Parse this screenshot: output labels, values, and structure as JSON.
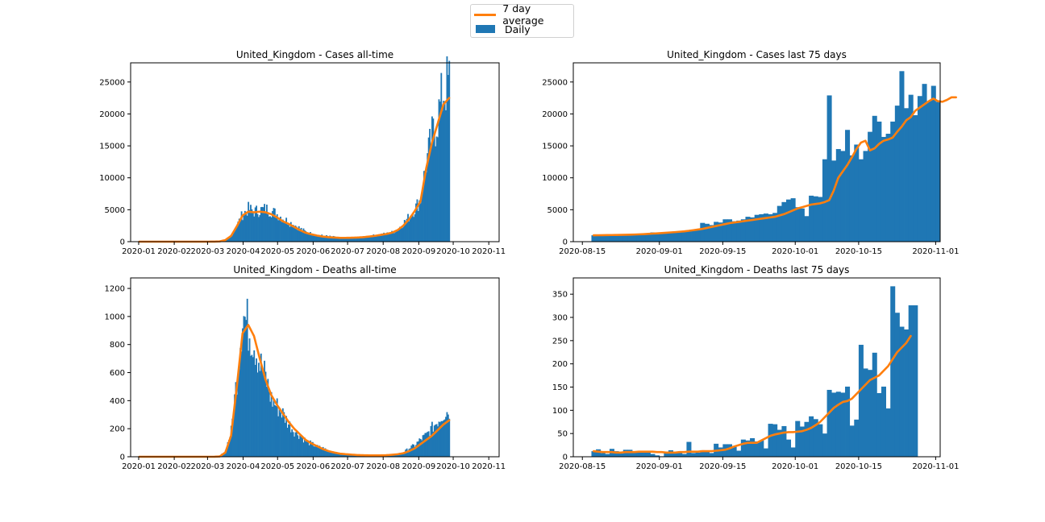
{
  "legend": {
    "items": [
      {
        "label": "7 day average",
        "color": "#ff7f0e",
        "kind": "line"
      },
      {
        "label": "Daily",
        "color": "#1f77b4",
        "kind": "bar"
      }
    ],
    "placement": "top-center"
  },
  "colors": {
    "bar": "#1f77b4",
    "line": "#ff7f0e"
  },
  "chart_data": [
    {
      "type": "bar",
      "title": "United_Kingdom - Cases all-time",
      "xlabel": "",
      "ylabel": "",
      "x_range": [
        "2019-12-25",
        "2020-11-10"
      ],
      "ylim": [
        0,
        28000
      ],
      "x_ticks": [
        "2020-01",
        "2020-02",
        "2020-03",
        "2020-04",
        "2020-05",
        "2020-06",
        "2020-07",
        "2020-08",
        "2020-09",
        "2020-10",
        "2020-11"
      ],
      "y_ticks": [
        0,
        5000,
        10000,
        15000,
        20000,
        25000
      ],
      "bar_start": "2020-01-01",
      "bar_days": 1,
      "daily": {
        "step": 5,
        "values": [
          0,
          0,
          0,
          0,
          0,
          0,
          0,
          0,
          0,
          0,
          0,
          0,
          0,
          10,
          60,
          300,
          900,
          2500,
          4200,
          5000,
          4600,
          4800,
          5000,
          4700,
          4200,
          3600,
          3000,
          2600,
          2000,
          1500,
          1200,
          1000,
          900,
          800,
          700,
          600,
          600,
          600,
          650,
          700,
          800,
          950,
          1100,
          1200,
          1400,
          1900,
          2800,
          3800,
          5000,
          6500,
          12000,
          16000,
          19000,
          23000,
          24500
        ]
      },
      "average": {
        "step": 5,
        "values": [
          0,
          0,
          0,
          0,
          0,
          0,
          0,
          0,
          0,
          0,
          0,
          0,
          0,
          5,
          40,
          250,
          900,
          2400,
          4100,
          4700,
          4600,
          4700,
          4600,
          4300,
          3800,
          3200,
          2800,
          2300,
          1800,
          1400,
          1150,
          950,
          800,
          700,
          650,
          600,
          600,
          620,
          650,
          700,
          800,
          900,
          1050,
          1200,
          1400,
          1800,
          2500,
          3500,
          4800,
          6300,
          11500,
          15500,
          18500,
          21500,
          22500
        ]
      }
    },
    {
      "type": "bar",
      "title": "United_Kingdom - Cases last 75 days",
      "xlabel": "",
      "ylabel": "",
      "x_range": [
        "2020-08-13",
        "2020-11-02"
      ],
      "ylim": [
        0,
        28000
      ],
      "x_ticks": [
        "2020-08-15",
        "2020-09-01",
        "2020-09-15",
        "2020-10-01",
        "2020-10-15",
        "2020-11-01"
      ],
      "y_ticks": [
        0,
        5000,
        10000,
        15000,
        20000,
        25000
      ],
      "bar_start": "2020-08-17",
      "bar_days": 1,
      "daily": {
        "step": 1,
        "values": [
          1000,
          1040,
          950,
          1040,
          1180,
          1030,
          1010,
          1100,
          1060,
          1040,
          1180,
          1140,
          1290,
          1450,
          1320,
          1410,
          1380,
          1500,
          1620,
          1500,
          1520,
          1690,
          1720,
          1800,
          2940,
          2800,
          2600,
          3100,
          3000,
          3500,
          3500,
          3200,
          3300,
          3500,
          3900,
          3800,
          4200,
          4300,
          4400,
          4300,
          4500,
          5600,
          6200,
          6600,
          6800,
          5400,
          5200,
          4000,
          7200,
          7100,
          7000,
          12900,
          22900,
          12700,
          14500,
          14200,
          17500,
          13500,
          15200,
          12900,
          14200,
          17200,
          19700,
          18800,
          16400,
          16900,
          18800,
          21300,
          26700,
          20900,
          23000,
          19800,
          22800,
          24700,
          22000,
          24400,
          21900
        ]
      },
      "average": {
        "step": 1,
        "values": [
          1000,
          1010,
          1020,
          1030,
          1040,
          1050,
          1060,
          1080,
          1100,
          1120,
          1150,
          1180,
          1220,
          1260,
          1300,
          1350,
          1400,
          1450,
          1500,
          1560,
          1620,
          1700,
          1800,
          1900,
          2000,
          2150,
          2300,
          2450,
          2600,
          2750,
          2900,
          3000,
          3100,
          3200,
          3300,
          3400,
          3500,
          3600,
          3700,
          3800,
          3900,
          4100,
          4300,
          4600,
          4900,
          5200,
          5400,
          5600,
          5800,
          5900,
          6000,
          6200,
          6500,
          8000,
          10000,
          11000,
          12000,
          13200,
          14500,
          15500,
          15800,
          14300,
          14600,
          15300,
          15800,
          16000,
          16300,
          17200,
          18000,
          19000,
          19500,
          20500,
          21000,
          21500,
          22000,
          22400,
          22000,
          21900,
          22200,
          22600,
          22600
        ]
      }
    },
    {
      "type": "bar",
      "title": "United_Kingdom - Deaths all-time",
      "xlabel": "",
      "ylabel": "",
      "x_range": [
        "2019-12-25",
        "2020-11-10"
      ],
      "ylim": [
        0,
        1275
      ],
      "x_ticks": [
        "2020-01",
        "2020-02",
        "2020-03",
        "2020-04",
        "2020-05",
        "2020-06",
        "2020-07",
        "2020-08",
        "2020-09",
        "2020-10",
        "2020-11"
      ],
      "y_ticks": [
        0,
        200,
        400,
        600,
        800,
        1000,
        1200
      ],
      "bar_start": "2020-01-01",
      "bar_days": 1,
      "daily": {
        "step": 5,
        "values": [
          0,
          0,
          0,
          0,
          0,
          0,
          0,
          0,
          0,
          0,
          0,
          0,
          0,
          0,
          5,
          40,
          180,
          550,
          1000,
          900,
          800,
          650,
          550,
          400,
          350,
          300,
          230,
          180,
          150,
          110,
          90,
          70,
          60,
          40,
          30,
          20,
          20,
          15,
          12,
          12,
          10,
          10,
          10,
          12,
          15,
          20,
          30,
          60,
          80,
          120,
          150,
          200,
          250,
          300,
          320
        ]
      },
      "average": {
        "step": 5,
        "values": [
          0,
          0,
          0,
          0,
          0,
          0,
          0,
          0,
          0,
          0,
          0,
          0,
          0,
          0,
          2,
          30,
          150,
          500,
          880,
          940,
          860,
          700,
          550,
          440,
          370,
          310,
          250,
          200,
          160,
          120,
          95,
          75,
          55,
          40,
          30,
          22,
          18,
          15,
          12,
          11,
          10,
          10,
          10,
          11,
          14,
          18,
          25,
          40,
          60,
          90,
          120,
          150,
          190,
          230,
          260
        ]
      }
    },
    {
      "type": "bar",
      "title": "United_Kingdom - Deaths last 75 days",
      "xlabel": "",
      "ylabel": "",
      "x_range": [
        "2020-08-13",
        "2020-11-02"
      ],
      "ylim": [
        0,
        385
      ],
      "x_ticks": [
        "2020-08-15",
        "2020-09-01",
        "2020-09-15",
        "2020-10-01",
        "2020-10-15",
        "2020-11-01"
      ],
      "y_ticks": [
        0,
        50,
        100,
        150,
        200,
        250,
        300,
        350
      ],
      "bar_start": "2020-08-17",
      "bar_days": 1,
      "daily": {
        "step": 1,
        "values": [
          12,
          16,
          8,
          6,
          17,
          12,
          7,
          15,
          15,
          10,
          10,
          9,
          10,
          6,
          3,
          1,
          8,
          14,
          11,
          10,
          6,
          32,
          8,
          9,
          14,
          12,
          8,
          28,
          20,
          27,
          27,
          23,
          13,
          37,
          35,
          40,
          33,
          35,
          18,
          71,
          70,
          58,
          66,
          37,
          20,
          77,
          65,
          75,
          87,
          81,
          70,
          50,
          144,
          138,
          140,
          138,
          151,
          67,
          80,
          241,
          190,
          187,
          224,
          137,
          151,
          104,
          367,
          310,
          280,
          274,
          326,
          326
        ]
      },
      "average": {
        "step": 1,
        "values": [
          12,
          11,
          10,
          10,
          10,
          9,
          9,
          10,
          10,
          10,
          11,
          11,
          11,
          11,
          10,
          10,
          9,
          9,
          9,
          10,
          10,
          11,
          11,
          11,
          12,
          12,
          12,
          13,
          14,
          15,
          18,
          22,
          25,
          28,
          30,
          30,
          30,
          35,
          40,
          45,
          48,
          50,
          52,
          53,
          53,
          54,
          55,
          58,
          62,
          68,
          75,
          85,
          95,
          105,
          112,
          118,
          120,
          125,
          135,
          145,
          155,
          165,
          170,
          175,
          185,
          195,
          210,
          225,
          235,
          245,
          260
        ]
      }
    }
  ]
}
